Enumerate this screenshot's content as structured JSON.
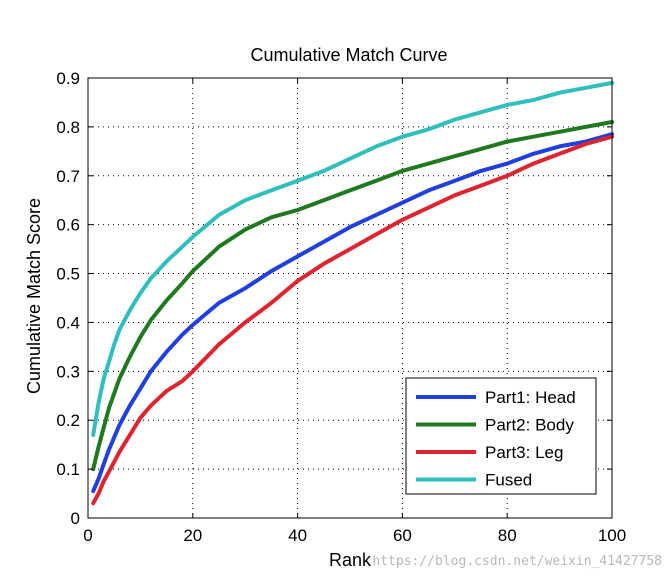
{
  "chart_data": {
    "type": "line",
    "title": "Cumulative Match Curve",
    "xlabel": "Rank",
    "ylabel": "Cumulative Match Score",
    "xlim": [
      0,
      100
    ],
    "ylim": [
      0,
      0.9
    ],
    "xticks": [
      0,
      20,
      40,
      60,
      80,
      100
    ],
    "yticks": [
      0,
      0.1,
      0.2,
      0.3,
      0.4,
      0.5,
      0.6,
      0.7,
      0.8,
      0.9
    ],
    "grid": true,
    "legend_position": "bottom-right",
    "series": [
      {
        "name": "Part1: Head",
        "color": "#1f3fe0",
        "x": [
          1,
          2,
          3,
          4,
          5,
          6,
          8,
          10,
          12,
          15,
          18,
          20,
          25,
          30,
          35,
          40,
          45,
          50,
          55,
          60,
          65,
          70,
          75,
          80,
          85,
          90,
          95,
          100
        ],
        "y": [
          0.055,
          0.08,
          0.11,
          0.14,
          0.165,
          0.19,
          0.23,
          0.265,
          0.3,
          0.34,
          0.375,
          0.395,
          0.44,
          0.47,
          0.505,
          0.535,
          0.565,
          0.595,
          0.62,
          0.645,
          0.67,
          0.69,
          0.71,
          0.725,
          0.745,
          0.76,
          0.77,
          0.785
        ]
      },
      {
        "name": "Part2: Body",
        "color": "#1f7a1f",
        "x": [
          1,
          2,
          3,
          4,
          5,
          6,
          8,
          10,
          12,
          15,
          18,
          20,
          25,
          30,
          35,
          40,
          45,
          50,
          55,
          60,
          65,
          70,
          75,
          80,
          85,
          90,
          95,
          100
        ],
        "y": [
          0.1,
          0.145,
          0.185,
          0.225,
          0.255,
          0.285,
          0.33,
          0.37,
          0.405,
          0.445,
          0.48,
          0.505,
          0.555,
          0.59,
          0.615,
          0.63,
          0.65,
          0.67,
          0.69,
          0.71,
          0.725,
          0.74,
          0.755,
          0.77,
          0.78,
          0.79,
          0.8,
          0.81
        ]
      },
      {
        "name": "Part3: Leg",
        "color": "#e0242f",
        "x": [
          1,
          2,
          3,
          4,
          5,
          6,
          8,
          10,
          12,
          15,
          18,
          20,
          25,
          30,
          35,
          40,
          45,
          50,
          55,
          60,
          65,
          70,
          75,
          80,
          85,
          90,
          95,
          100
        ],
        "y": [
          0.03,
          0.05,
          0.075,
          0.095,
          0.115,
          0.135,
          0.17,
          0.205,
          0.23,
          0.26,
          0.28,
          0.3,
          0.355,
          0.4,
          0.44,
          0.485,
          0.52,
          0.55,
          0.58,
          0.61,
          0.635,
          0.66,
          0.68,
          0.7,
          0.725,
          0.745,
          0.765,
          0.78
        ]
      },
      {
        "name": "Fused",
        "color": "#2fbfbf",
        "x": [
          1,
          2,
          3,
          4,
          5,
          6,
          8,
          10,
          12,
          15,
          18,
          20,
          25,
          30,
          35,
          40,
          45,
          50,
          55,
          60,
          65,
          70,
          75,
          80,
          85,
          90,
          95,
          100
        ],
        "y": [
          0.17,
          0.235,
          0.285,
          0.32,
          0.355,
          0.385,
          0.425,
          0.46,
          0.49,
          0.525,
          0.555,
          0.575,
          0.62,
          0.65,
          0.67,
          0.69,
          0.71,
          0.735,
          0.76,
          0.78,
          0.795,
          0.815,
          0.83,
          0.845,
          0.855,
          0.87,
          0.88,
          0.89
        ]
      }
    ]
  },
  "watermark": "https://blog.csdn.net/weixin_41427758"
}
